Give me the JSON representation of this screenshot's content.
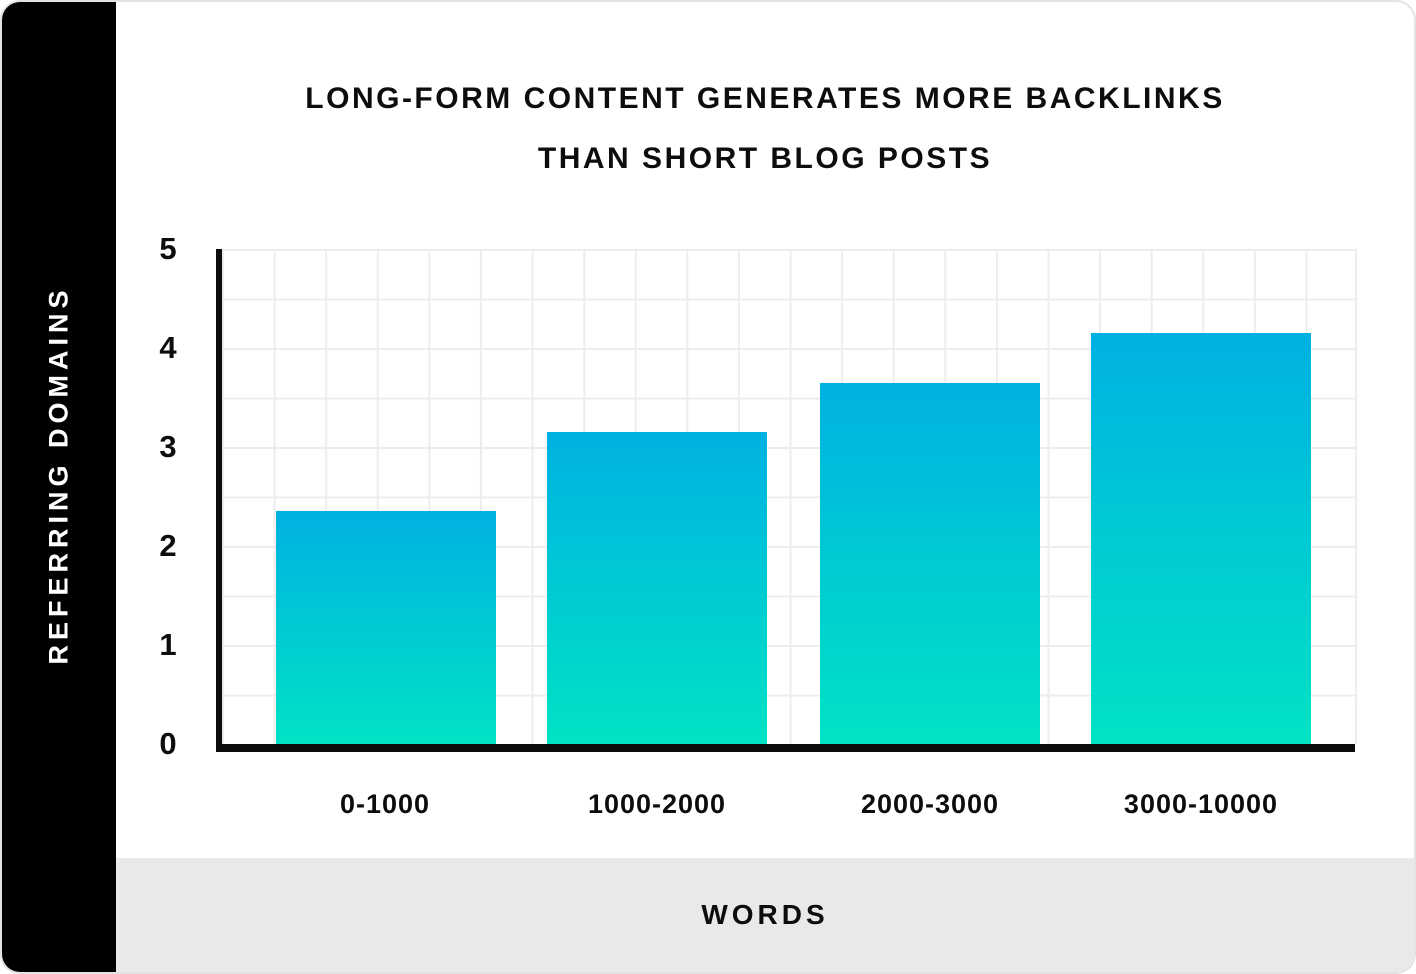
{
  "header": {
    "title_line1": "LONG-FORM CONTENT GENERATES MORE BACKLINKS",
    "title_line2": "THAN SHORT BLOG POSTS"
  },
  "sidebar": {
    "label": "REFERRING DOMAINS"
  },
  "footer": {
    "label": "WORDS"
  },
  "chart_data": {
    "type": "bar",
    "title": "LONG-FORM CONTENT GENERATES MORE BACKLINKS THAN SHORT BLOG POSTS",
    "xlabel": "WORDS",
    "ylabel": "REFERRING DOMAINS",
    "categories": [
      "0-1000",
      "1000-2000",
      "2000-3000",
      "3000-10000"
    ],
    "values": [
      2.35,
      3.15,
      3.65,
      4.15
    ],
    "ylim": [
      0,
      5
    ],
    "yticks": [
      5,
      4,
      3,
      2,
      1,
      0
    ],
    "grid": true,
    "legend": false,
    "bar_gradient_top": "#00b1e2",
    "bar_gradient_bottom": "#00e3c4",
    "axis_color": "#0d0d0d",
    "grid_color": "#ededed",
    "sidebar_bg": "#000000",
    "footer_bg": "#e9e9e9"
  }
}
